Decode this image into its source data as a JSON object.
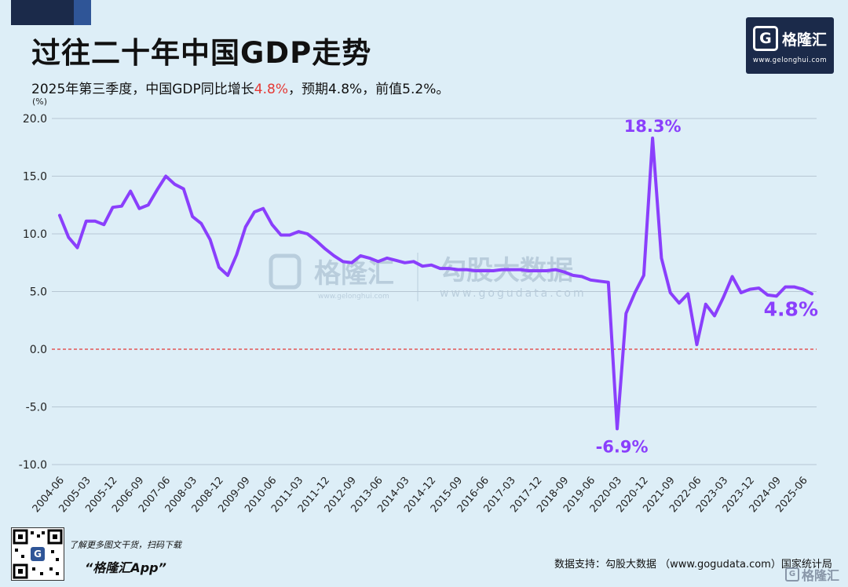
{
  "header": {
    "title": "过往二十年中国GDP走势",
    "subtitle_prefix": "2025年第三季度，中国GDP同比增长",
    "subtitle_highlight": "4.8%",
    "subtitle_suffix": "，预期4.8%，前值5.2%。"
  },
  "logo": {
    "glyph": "G",
    "name": "格隆汇",
    "url": "www.gelonghui.com"
  },
  "watermark": {
    "left_name": "格隆汇",
    "left_url": "www.gelonghui.com",
    "right_name": "勾股大数据",
    "right_url": "www.gogudata.com"
  },
  "footer": {
    "note": "了解更多图文干货，扫码下载",
    "app": "“格隆汇App”",
    "source": "数据支持：勾股大数据 （www.gogudata.com）国家统计局",
    "logo_name": "格隆汇",
    "qr_glyph": "G"
  },
  "colors": {
    "line": "#8a3ffc",
    "zero_line": "#e53935",
    "grid": "#b7c7d4",
    "accent_red": "#e53935",
    "dark": "#1b2a4a"
  },
  "chart_data": {
    "type": "line",
    "title": "过往二十年中国GDP走势",
    "ylabel": "(%)",
    "xlabel": "",
    "ylim": [
      -10,
      20
    ],
    "yticks": [
      "20.0",
      "15.0",
      "10.0",
      "5.0",
      "0.0",
      "-5.0",
      "-10.0"
    ],
    "ytick_values": [
      20,
      15,
      10,
      5,
      0,
      -5,
      -10
    ],
    "grid": true,
    "reference_line": 0,
    "x_tick_labels": [
      "2004-06",
      "2005-03",
      "2005-12",
      "2006-09",
      "2007-06",
      "2008-03",
      "2008-12",
      "2009-09",
      "2010-06",
      "2011-03",
      "2011-12",
      "2012-09",
      "2013-06",
      "2014-03",
      "2014-12",
      "2015-09",
      "2016-06",
      "2017-03",
      "2017-12",
      "2018-09",
      "2019-06",
      "2020-03",
      "2020-12",
      "2021-09",
      "2022-06",
      "2023-03",
      "2023-12",
      "2024-09",
      "2025-06"
    ],
    "annotations": [
      {
        "text": "18.3%",
        "x": "2021-03",
        "y": 18.3
      },
      {
        "text": "-6.9%",
        "x": "2020-03",
        "y": -6.9
      },
      {
        "text": "4.8%",
        "x": "2025-09",
        "y": 4.8
      }
    ],
    "x": [
      "2004-06",
      "2004-09",
      "2004-12",
      "2005-03",
      "2005-06",
      "2005-09",
      "2005-12",
      "2006-03",
      "2006-06",
      "2006-09",
      "2006-12",
      "2007-03",
      "2007-06",
      "2007-09",
      "2007-12",
      "2008-03",
      "2008-06",
      "2008-09",
      "2008-12",
      "2009-03",
      "2009-06",
      "2009-09",
      "2009-12",
      "2010-03",
      "2010-06",
      "2010-09",
      "2010-12",
      "2011-03",
      "2011-06",
      "2011-09",
      "2011-12",
      "2012-03",
      "2012-06",
      "2012-09",
      "2012-12",
      "2013-03",
      "2013-06",
      "2013-09",
      "2013-12",
      "2014-03",
      "2014-06",
      "2014-09",
      "2014-12",
      "2015-03",
      "2015-06",
      "2015-09",
      "2015-12",
      "2016-03",
      "2016-06",
      "2016-09",
      "2016-12",
      "2017-03",
      "2017-06",
      "2017-09",
      "2017-12",
      "2018-03",
      "2018-06",
      "2018-09",
      "2018-12",
      "2019-03",
      "2019-06",
      "2019-09",
      "2019-12",
      "2020-03",
      "2020-06",
      "2020-09",
      "2020-12",
      "2021-03",
      "2021-06",
      "2021-09",
      "2021-12",
      "2022-03",
      "2022-06",
      "2022-09",
      "2022-12",
      "2023-03",
      "2023-06",
      "2023-09",
      "2023-12",
      "2024-03",
      "2024-06",
      "2024-09",
      "2024-12",
      "2025-03",
      "2025-06",
      "2025-09"
    ],
    "series": [
      {
        "values": [
          11.6,
          9.7,
          8.8,
          11.1,
          11.1,
          10.8,
          12.3,
          12.4,
          13.7,
          12.2,
          12.5,
          13.8,
          15.0,
          14.3,
          13.9,
          11.5,
          10.9,
          9.5,
          7.1,
          6.4,
          8.2,
          10.6,
          11.9,
          12.2,
          10.8,
          9.9,
          9.9,
          10.2,
          10.0,
          9.4,
          8.7,
          8.1,
          7.6,
          7.5,
          8.1,
          7.9,
          7.6,
          7.9,
          7.7,
          7.5,
          7.6,
          7.2,
          7.3,
          7.0,
          7.0,
          6.9,
          6.9,
          6.8,
          6.8,
          6.8,
          6.9,
          6.9,
          6.9,
          6.8,
          6.8,
          6.8,
          6.9,
          6.7,
          6.4,
          6.3,
          6.0,
          5.9,
          5.8,
          -6.9,
          3.1,
          4.9,
          6.4,
          18.3,
          7.9,
          4.9,
          4.0,
          4.8,
          0.4,
          3.9,
          2.9,
          4.5,
          6.3,
          4.9,
          5.2,
          5.3,
          4.7,
          4.6,
          5.4,
          5.4,
          5.2,
          4.8
        ]
      }
    ]
  }
}
